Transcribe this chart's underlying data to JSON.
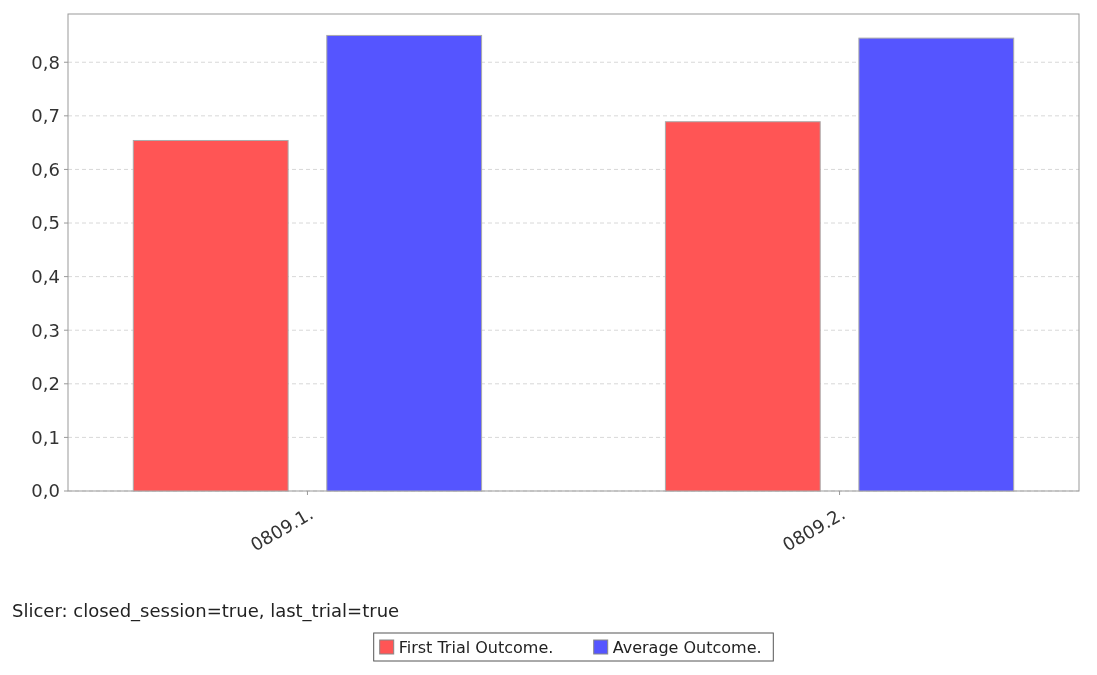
{
  "chart_data": {
    "type": "bar",
    "categories": [
      "0809.1.",
      "0809.2."
    ],
    "series": [
      {
        "name": "First Trial Outcome.",
        "color": "#ff5555",
        "values": [
          0.654,
          0.689
        ]
      },
      {
        "name": "Average Outcome.",
        "color": "#5555ff",
        "values": [
          0.85,
          0.845
        ]
      }
    ],
    "ylim": [
      0,
      0.89
    ],
    "yticks": [
      {
        "value": 0,
        "label": "0,0"
      },
      {
        "value": 0.1,
        "label": "0,1"
      },
      {
        "value": 0.2,
        "label": "0,2"
      },
      {
        "value": 0.3,
        "label": "0,3"
      },
      {
        "value": 0.4,
        "label": "0,4"
      },
      {
        "value": 0.5,
        "label": "0,5"
      },
      {
        "value": 0.6,
        "label": "0,6"
      },
      {
        "value": 0.7,
        "label": "0,7"
      },
      {
        "value": 0.8,
        "label": "0,8"
      }
    ],
    "grid": "y",
    "legend": "bottom",
    "annotations": [
      "Slicer: closed_session=true, last_trial=true"
    ]
  }
}
